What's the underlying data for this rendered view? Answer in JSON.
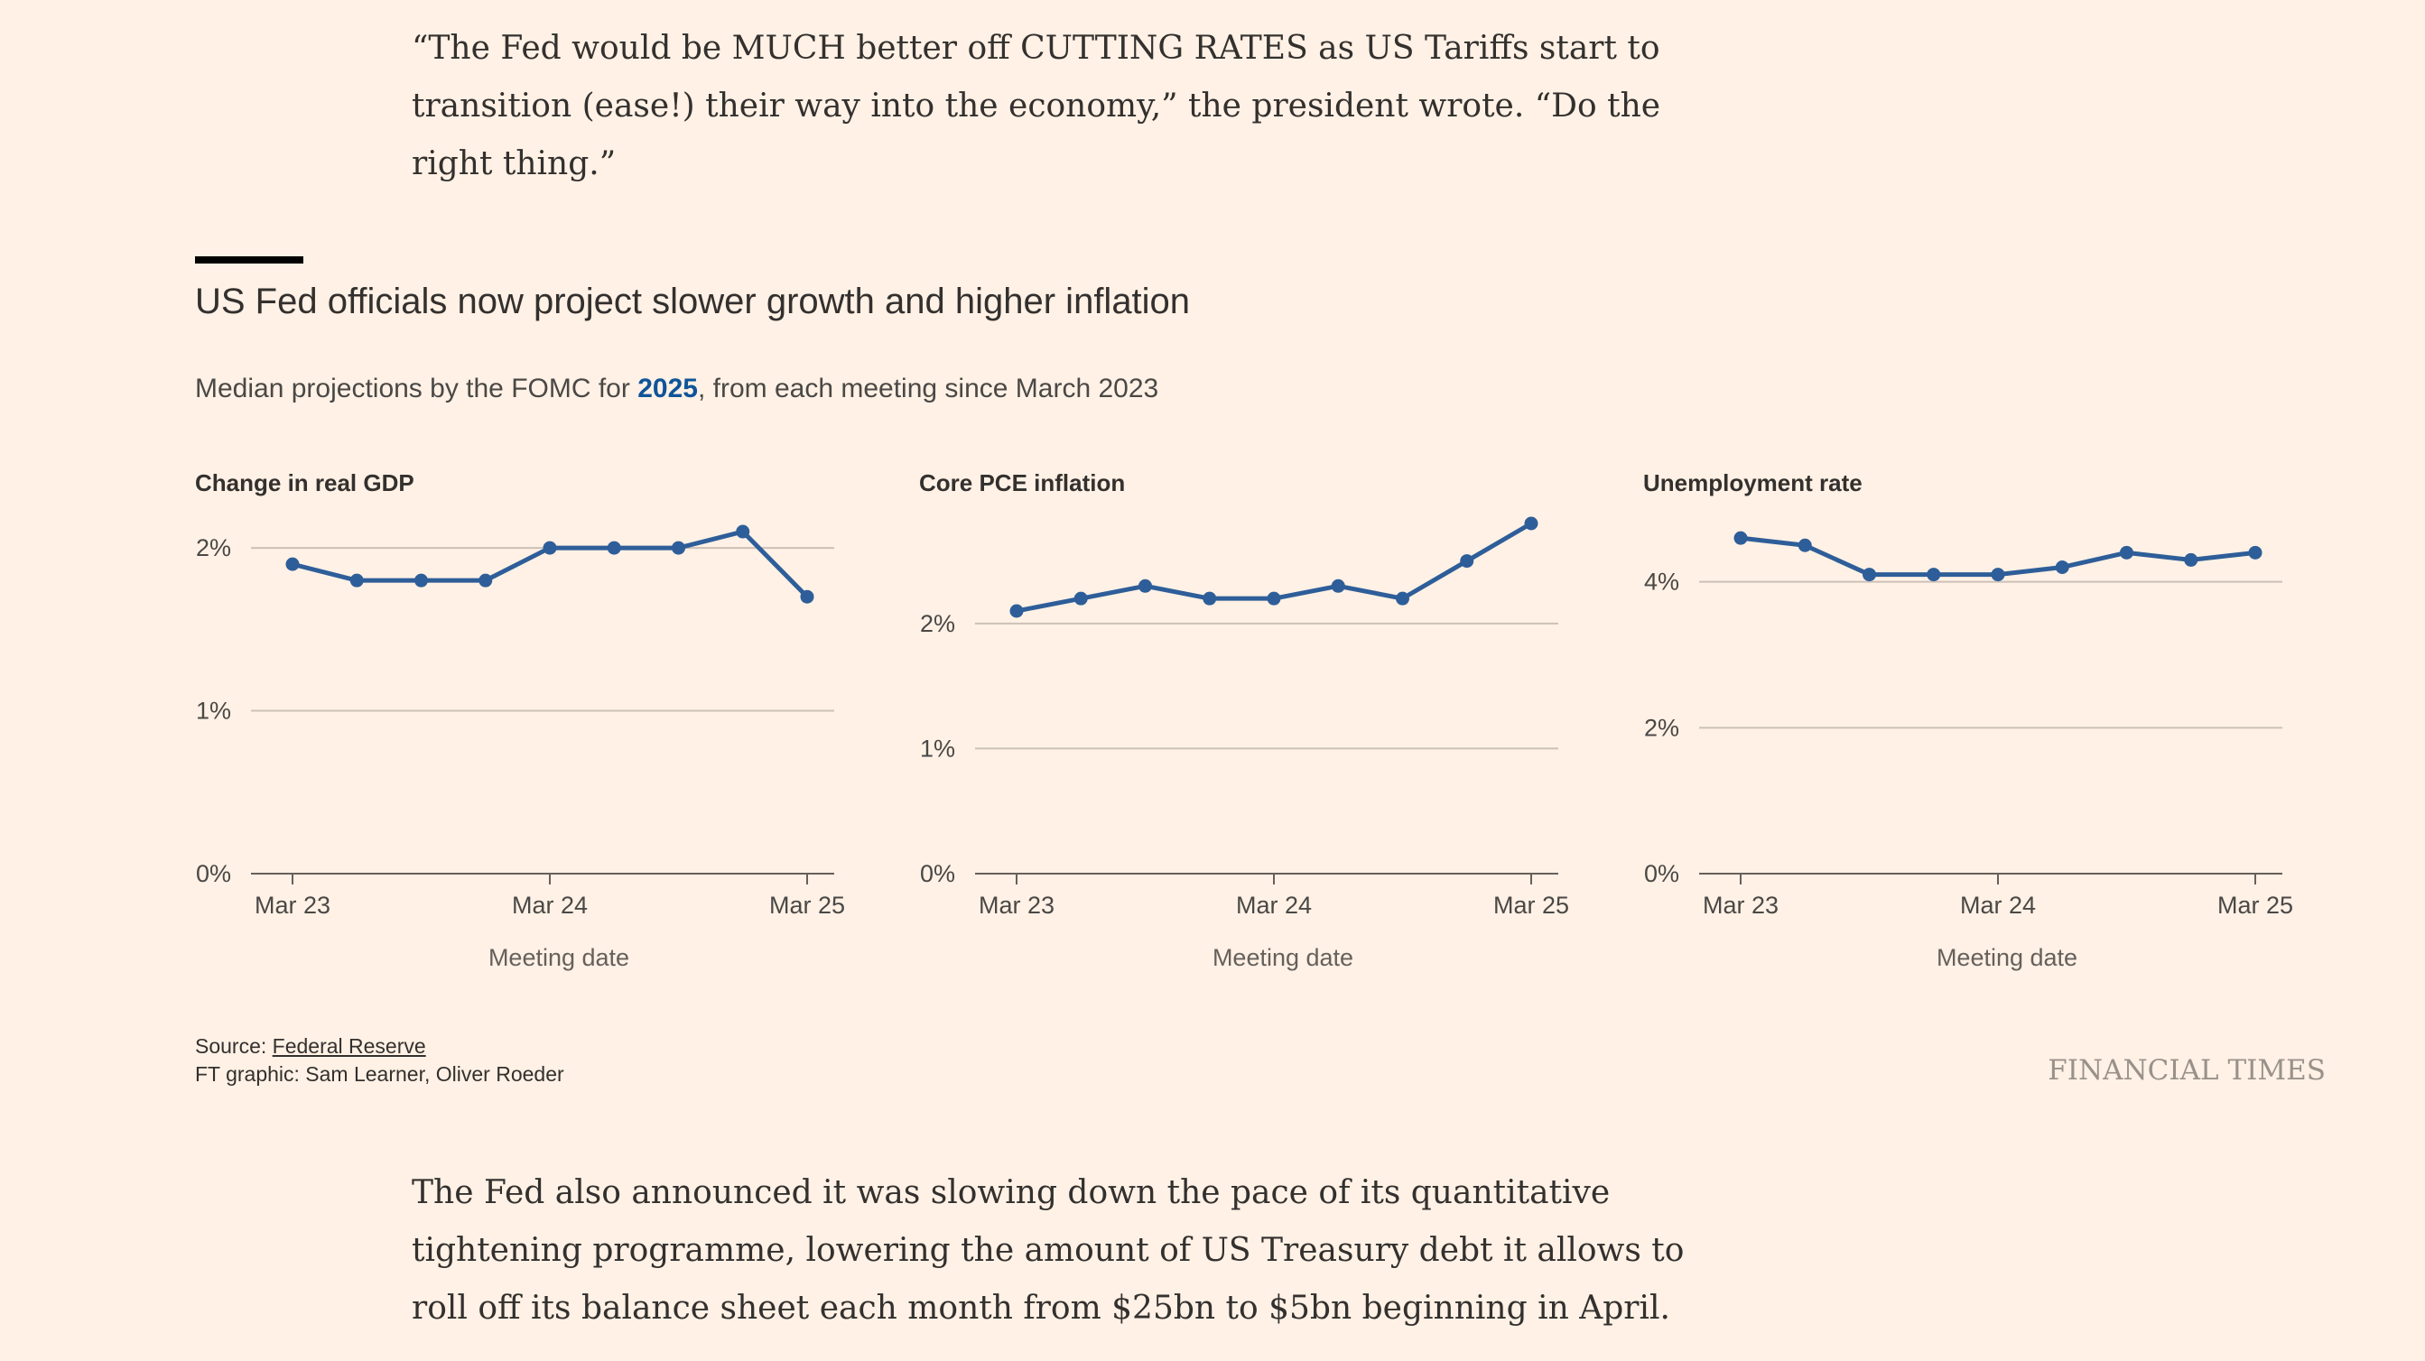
{
  "article": {
    "quote": "“The Fed would be MUCH better off CUTTING RATES as US Tariffs start to transition (ease!) their way into the economy,” the president wrote. “Do the right thing.”",
    "paragraph_after": "The Fed also announced it was slowing down the pace of its quantitative tightening programme, lowering the amount of US Treasury debt it allows to roll off its balance sheet each month from $25bn to $5bn beginning in April."
  },
  "graphic": {
    "title": "US Fed officials now project slower growth and higher inflation",
    "subtitle_before": "Median projections by the FOMC for ",
    "subtitle_highlight": "2025",
    "subtitle_after": ", from each meeting since March 2023",
    "source_prefix": "Source: ",
    "source_link": "Federal Reserve",
    "credit": "FT graphic: Sam Learner, Oliver Roeder",
    "brand": "FINANCIAL TIMES",
    "colors": {
      "line": "#2e5e99",
      "highlight": "#0f5499",
      "background": "#fff1e5"
    }
  },
  "chart_data": [
    {
      "type": "line",
      "title": "Change in real GDP",
      "xlabel": "Meeting date",
      "x_ticks": [
        "Mar 23",
        "Mar 24",
        "Mar 25"
      ],
      "x_tick_index": [
        0,
        4,
        8
      ],
      "y_ticks": [
        "0%",
        "1%",
        "2%"
      ],
      "y_tick_values": [
        0,
        1,
        2
      ],
      "ylim": [
        0,
        2.15
      ],
      "grid": true,
      "series": [
        {
          "values": [
            1.9,
            1.8,
            1.8,
            1.8,
            2.0,
            2.0,
            2.0,
            2.1,
            1.7
          ]
        }
      ]
    },
    {
      "type": "line",
      "title": "Core PCE inflation",
      "xlabel": "Meeting date",
      "x_ticks": [
        "Mar 23",
        "Mar 24",
        "Mar 25"
      ],
      "x_tick_index": [
        0,
        4,
        8
      ],
      "y_ticks": [
        "0%",
        "1%",
        "2%"
      ],
      "y_tick_values": [
        0,
        1,
        2
      ],
      "ylim": [
        0,
        2.8
      ],
      "grid": true,
      "series": [
        {
          "values": [
            2.1,
            2.2,
            2.3,
            2.2,
            2.2,
            2.3,
            2.2,
            2.5,
            2.8
          ]
        }
      ]
    },
    {
      "type": "line",
      "title": "Unemployment rate",
      "xlabel": "Meeting date",
      "x_ticks": [
        "Mar 23",
        "Mar 24",
        "Mar 25"
      ],
      "x_tick_index": [
        0,
        4,
        8
      ],
      "y_ticks": [
        "0%",
        "2%",
        "4%"
      ],
      "y_tick_values": [
        0,
        2,
        4
      ],
      "ylim": [
        0,
        4.8
      ],
      "grid": true,
      "series": [
        {
          "values": [
            4.6,
            4.5,
            4.1,
            4.1,
            4.1,
            4.2,
            4.4,
            4.3,
            4.4
          ]
        }
      ]
    }
  ]
}
